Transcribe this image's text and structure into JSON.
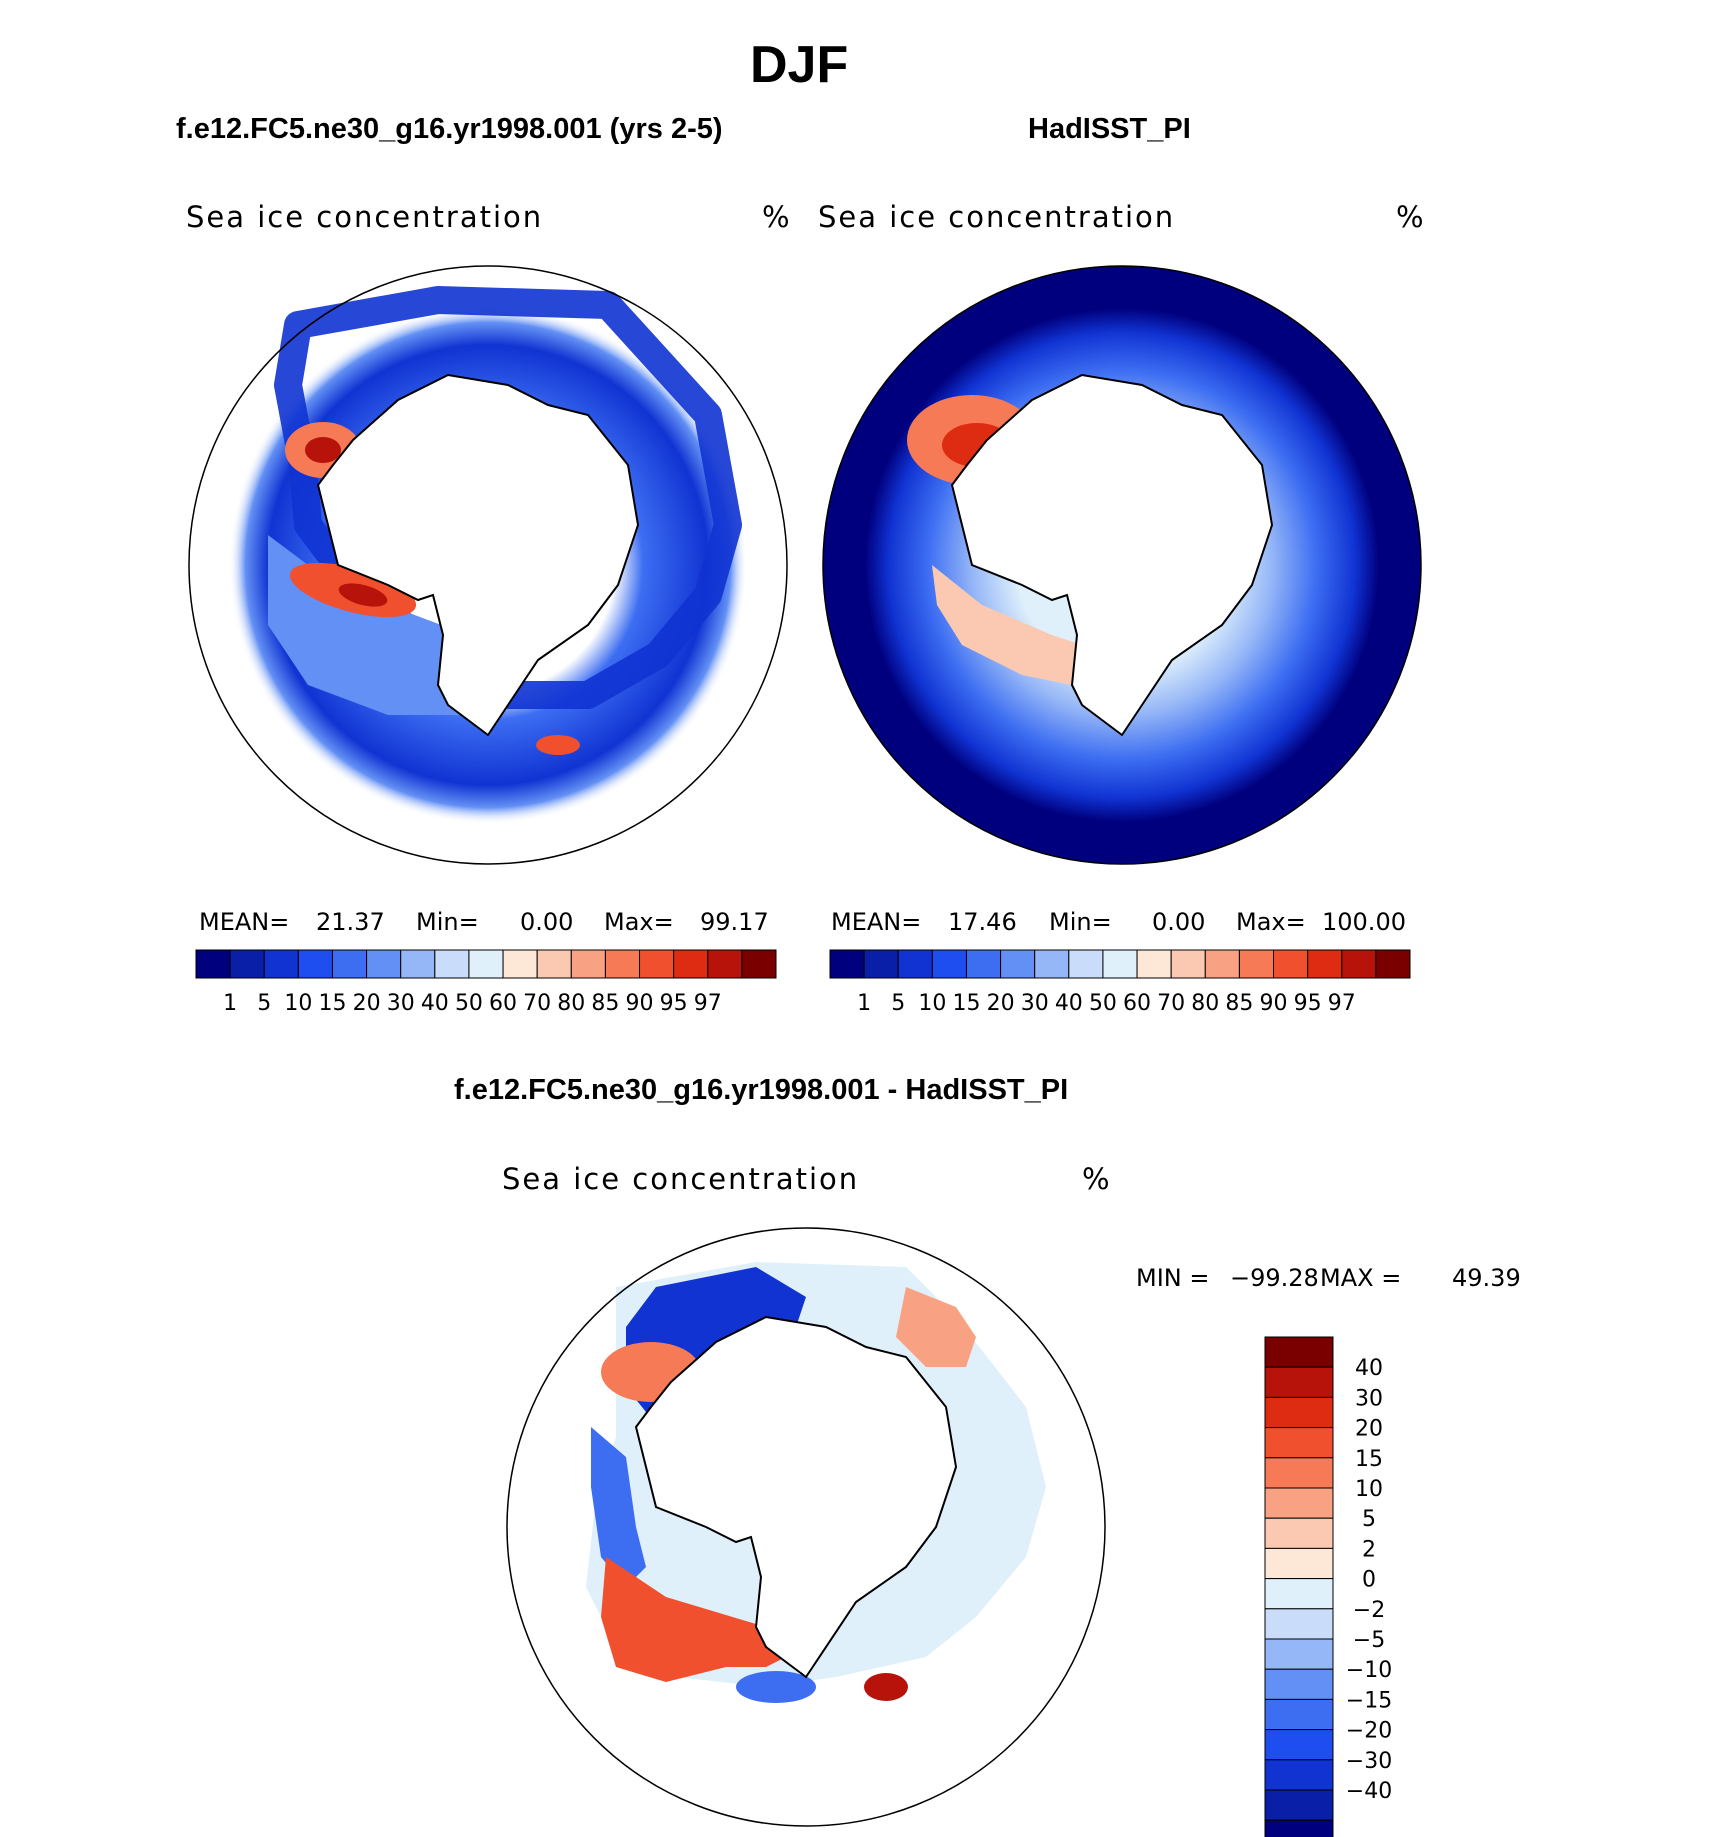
{
  "title": "DJF",
  "chart_data": [
    {
      "type": "heatmap",
      "panel_title": "f.e12.FC5.ne30_g16.yr1998.001 (yrs 2-5)",
      "subtitle": "Sea ice concentration",
      "units": "%",
      "stats": {
        "mean_label": "MEAN=",
        "mean": "21.37",
        "min_label": "Min=",
        "min": "0.00",
        "max_label": "Max=",
        "max": "99.17"
      },
      "colorbar_levels": [
        "1",
        "5",
        "10",
        "15",
        "20",
        "30",
        "40",
        "50",
        "60",
        "70",
        "80",
        "85",
        "90",
        "95",
        "97"
      ]
    },
    {
      "type": "heatmap",
      "panel_title": "HadISST_PI",
      "subtitle": "Sea ice concentration",
      "units": "%",
      "stats": {
        "mean_label": "MEAN=",
        "mean": "17.46",
        "min_label": "Min=",
        "min": "0.00",
        "max_label": "Max=",
        "max": "100.00"
      },
      "colorbar_levels": [
        "1",
        "5",
        "10",
        "15",
        "20",
        "30",
        "40",
        "50",
        "60",
        "70",
        "80",
        "85",
        "90",
        "95",
        "97"
      ]
    },
    {
      "type": "heatmap",
      "panel_title": "f.e12.FC5.ne30_g16.yr1998.001 - HadISST_PI",
      "subtitle": "Sea ice concentration",
      "units": "%",
      "stats": {
        "min_label": "MIN =",
        "min": "−99.28",
        "max_label": "MAX =",
        "max": "49.39"
      },
      "colorbar_levels": [
        "40",
        "30",
        "20",
        "15",
        "10",
        "5",
        "2",
        "0",
        "−2",
        "−5",
        "−10",
        "−15",
        "−20",
        "−30",
        "−40"
      ]
    }
  ],
  "colors": {
    "seq": [
      "#00007e",
      "#0a1fa8",
      "#1033d2",
      "#1f4ef0",
      "#3d6ef2",
      "#6390f4",
      "#96b7f7",
      "#c9ddfa",
      "#dff0fb",
      "#fde8d8",
      "#fbc9b2",
      "#f9a283",
      "#f57a55",
      "#f0502e",
      "#dd2c12",
      "#b8130a",
      "#7a0000"
    ],
    "diff": [
      "#7a0000",
      "#b8130a",
      "#dd2c12",
      "#f0502e",
      "#f57a55",
      "#f9a283",
      "#fbc9b2",
      "#fde8d8",
      "#dff0fb",
      "#c9ddfa",
      "#96b7f7",
      "#6390f4",
      "#3d6ef2",
      "#1f4ef0",
      "#1033d2",
      "#0a1fa8",
      "#00007e"
    ]
  }
}
